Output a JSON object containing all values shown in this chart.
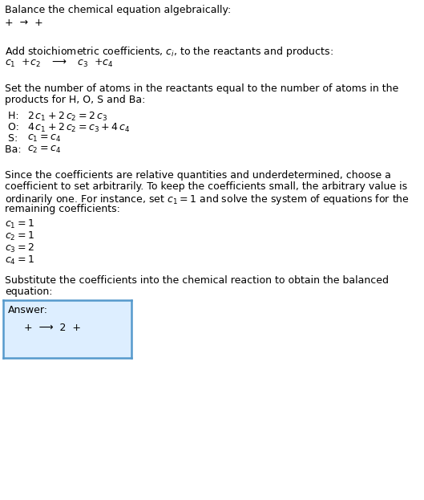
{
  "title": "Balance the chemical equation algebraically:",
  "line1": "+  →  +",
  "section2_header": "Add stoichiometric coefficients, $c_i$, to the reactants and products:",
  "section2_eq": "$c_1$  +$c_2$   ⟶   $c_3$  +$c_4$",
  "section3_header_1": "Set the number of atoms in the reactants equal to the number of atoms in the",
  "section3_header_2": "products for H, O, S and Ba:",
  "section3_lines": [
    [
      " H:",
      "$2\\,c_1 + 2\\,c_2 = 2\\,c_3$"
    ],
    [
      " O:",
      "$4\\,c_1 + 2\\,c_2 = c_3 + 4\\,c_4$"
    ],
    [
      " S:",
      "$c_1 = c_4$"
    ],
    [
      "Ba:",
      "$c_2 = c_4$"
    ]
  ],
  "section4_lines": [
    "Since the coefficients are relative quantities and underdetermined, choose a",
    "coefficient to set arbitrarily. To keep the coefficients small, the arbitrary value is",
    "ordinarily one. For instance, set $c_1 = 1$ and solve the system of equations for the",
    "remaining coefficients:"
  ],
  "coeff_lines": [
    "$c_1 = 1$",
    "$c_2 = 1$",
    "$c_3 = 2$",
    "$c_4 = 1$"
  ],
  "section5_header_1": "Substitute the coefficients into the chemical reaction to obtain the balanced",
  "section5_header_2": "equation:",
  "answer_label": "Answer:",
  "answer_eq": "+  ⟶  2  +",
  "bg_color": "#ffffff",
  "box_bg_color": "#ddeeff",
  "box_border_color": "#5599cc",
  "text_color": "#000000",
  "sep_color": "#cccccc",
  "fs": 9.0
}
